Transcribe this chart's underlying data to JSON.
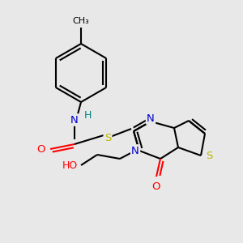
{
  "bg_color": "#e8e8e8",
  "atom_colors": {
    "N": "#0000cd",
    "O": "#ff0000",
    "S": "#b8b800",
    "H": "#008080",
    "C": "#000000"
  },
  "bond_lw": 1.5,
  "font_size": 9.5
}
